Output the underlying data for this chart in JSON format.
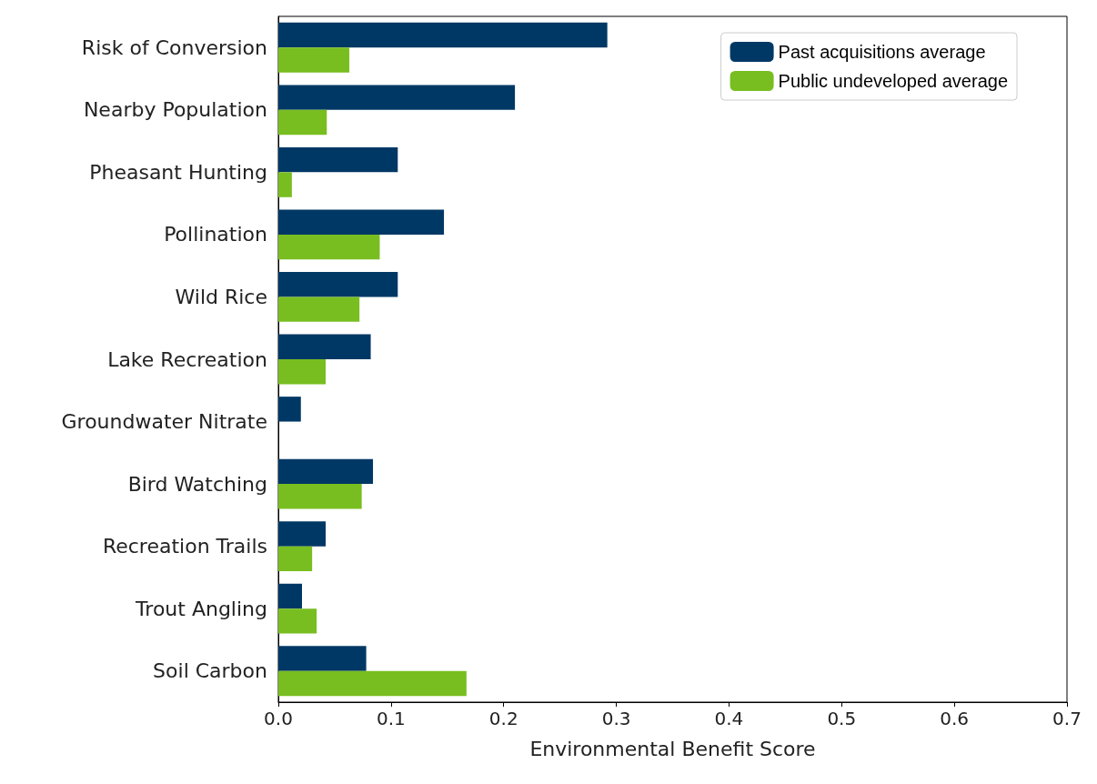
{
  "chart_data": {
    "type": "bar",
    "orientation": "horizontal",
    "xlabel": "Environmental Benefit Score",
    "categories": [
      "Risk of Conversion",
      "Nearby Population",
      "Pheasant Hunting",
      "Pollination",
      "Wild Rice",
      "Lake Recreation",
      "Groundwater Nitrate",
      "Bird Watching",
      "Recreation Trails",
      "Trout Angling",
      "Soil Carbon"
    ],
    "series": [
      {
        "name": "Past acquisitions average",
        "color": "#003865",
        "values": [
          0.292,
          0.21,
          0.106,
          0.147,
          0.106,
          0.082,
          0.02,
          0.084,
          0.042,
          0.021,
          0.078
        ]
      },
      {
        "name": "Public undeveloped average",
        "color": "#78be20",
        "values": [
          0.063,
          0.043,
          0.012,
          0.09,
          0.072,
          0.042,
          0,
          0.074,
          0.03,
          0.034,
          0.167
        ]
      }
    ],
    "xlim": [
      0,
      0.7
    ],
    "xticks": [
      {
        "value": 0,
        "label": "0.0"
      },
      {
        "value": 0.1,
        "label": "0.1"
      },
      {
        "value": 0.2,
        "label": "0.2"
      },
      {
        "value": 0.3,
        "label": "0.3"
      },
      {
        "value": 0.4,
        "label": "0.4"
      },
      {
        "value": 0.5,
        "label": "0.5"
      },
      {
        "value": 0.6,
        "label": "0.6"
      },
      {
        "value": 0.7,
        "label": "0.7"
      }
    ],
    "legend": "top right",
    "grid": false
  }
}
